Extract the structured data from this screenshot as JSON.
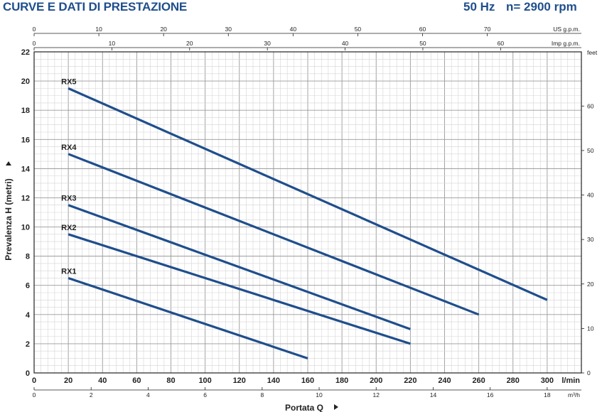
{
  "header": {
    "title": "CURVE E DATI DI PRESTAZIONE",
    "frequency": "50 Hz",
    "speed": "n= 2900 rpm"
  },
  "colors": {
    "curve": "#1f4e8c",
    "grid_minor": "#d4d4d4",
    "grid_major": "#9a9a9a",
    "title": "#1f4e8c"
  },
  "chart_data": {
    "type": "line",
    "ylabel": "Prevalenza H (metri)",
    "xlabel": "Portata Q",
    "xlim": [
      0,
      320
    ],
    "ylim": [
      0,
      22
    ],
    "x_unit": "l/min",
    "x_ticks": [
      0,
      20,
      40,
      60,
      80,
      100,
      120,
      140,
      160,
      180,
      200,
      220,
      240,
      260,
      280,
      300
    ],
    "y_ticks": [
      0,
      2,
      4,
      6,
      8,
      10,
      12,
      14,
      16,
      18,
      20,
      22
    ],
    "grid": true,
    "secondary_axes": {
      "m3h": {
        "unit": "m³/h",
        "ticks": [
          0,
          2,
          4,
          6,
          8,
          10,
          12,
          14,
          16,
          18
        ]
      },
      "us_gpm": {
        "unit": "US g.p.m.",
        "ticks": [
          0,
          10,
          20,
          30,
          40,
          50,
          60,
          70
        ]
      },
      "imp_gpm": {
        "unit": "Imp g.p.m.",
        "ticks": [
          0,
          10,
          20,
          30,
          40,
          50,
          60
        ]
      },
      "feet": {
        "unit": "feet",
        "ticks": [
          0,
          10,
          20,
          30,
          40,
          50,
          60
        ]
      }
    },
    "series": [
      {
        "name": "RX1",
        "x": [
          20,
          160
        ],
        "y": [
          6.5,
          1.0
        ]
      },
      {
        "name": "RX2",
        "x": [
          20,
          220
        ],
        "y": [
          9.5,
          2.0
        ]
      },
      {
        "name": "RX3",
        "x": [
          20,
          220
        ],
        "y": [
          11.5,
          3.0
        ]
      },
      {
        "name": "RX4",
        "x": [
          20,
          260
        ],
        "y": [
          15.0,
          4.0
        ]
      },
      {
        "name": "RX5",
        "x": [
          20,
          300
        ],
        "y": [
          19.5,
          5.0
        ]
      }
    ]
  }
}
